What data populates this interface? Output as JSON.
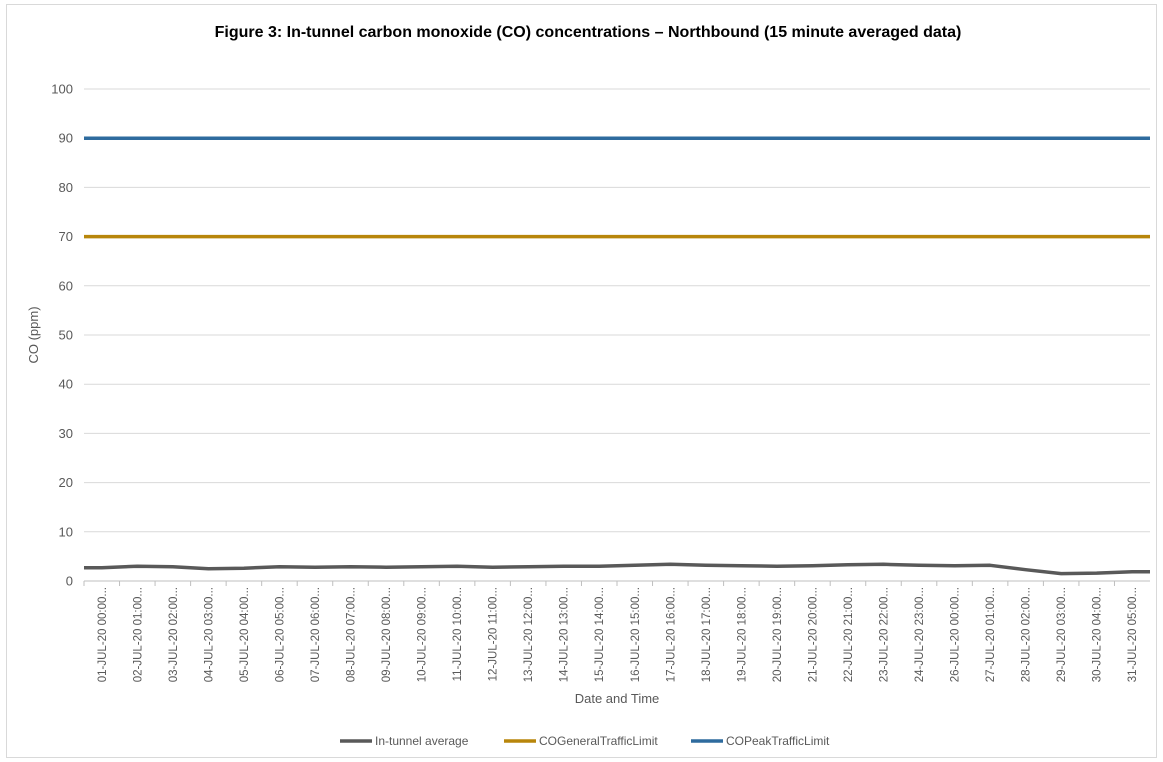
{
  "chart_data": {
    "type": "line",
    "title": "Figure 3: In-tunnel carbon monoxide (CO) concentrations – Northbound (15 minute averaged data)",
    "xlabel": "Date and Time",
    "ylabel": "CO (ppm)",
    "ylim": [
      0,
      100
    ],
    "yticks": [
      0,
      10,
      20,
      30,
      40,
      50,
      60,
      70,
      80,
      90,
      100
    ],
    "grid": true,
    "legend_position": "bottom",
    "categories": [
      "01-JUL-20 00:00...",
      "02-JUL-20 01:00...",
      "03-JUL-20 02:00...",
      "04-JUL-20 03:00...",
      "05-JUL-20 04:00...",
      "06-JUL-20 05:00...",
      "07-JUL-20 06:00...",
      "08-JUL-20 07:00...",
      "09-JUL-20 08:00...",
      "10-JUL-20 09:00...",
      "11-JUL-20 10:00...",
      "12-JUL-20 11:00...",
      "13-JUL-20 12:00...",
      "14-JUL-20 13:00...",
      "15-JUL-20 14:00...",
      "16-JUL-20 15:00...",
      "17-JUL-20 16:00...",
      "18-JUL-20 17:00...",
      "19-JUL-20 18:00...",
      "20-JUL-20 19:00...",
      "21-JUL-20 20:00...",
      "22-JUL-20 21:00...",
      "23-JUL-20 22:00...",
      "24-JUL-20 23:00...",
      "26-JUL-20 00:00...",
      "27-JUL-20 01:00...",
      "28-JUL-20 02:00...",
      "29-JUL-20 03:00...",
      "30-JUL-20 04:00...",
      "31-JUL-20 05:00..."
    ],
    "series": [
      {
        "name": "In-tunnel average",
        "color": "#595959",
        "values": [
          2.7,
          3.0,
          2.9,
          2.5,
          2.6,
          2.9,
          2.8,
          2.9,
          2.8,
          2.9,
          3.0,
          2.8,
          2.9,
          3.0,
          3.0,
          3.2,
          3.4,
          3.2,
          3.1,
          3.0,
          3.1,
          3.3,
          3.4,
          3.2,
          3.1,
          3.2,
          2.3,
          1.5,
          1.6,
          1.9
        ]
      },
      {
        "name": "COGeneralTrafficLimit",
        "color": "#b8860b",
        "values": [
          70,
          70,
          70,
          70,
          70,
          70,
          70,
          70,
          70,
          70,
          70,
          70,
          70,
          70,
          70,
          70,
          70,
          70,
          70,
          70,
          70,
          70,
          70,
          70,
          70,
          70,
          70,
          70,
          70,
          70
        ]
      },
      {
        "name": "COPeakTrafficLimit",
        "color": "#2e6b9e",
        "values": [
          90,
          90,
          90,
          90,
          90,
          90,
          90,
          90,
          90,
          90,
          90,
          90,
          90,
          90,
          90,
          90,
          90,
          90,
          90,
          90,
          90,
          90,
          90,
          90,
          90,
          90,
          90,
          90,
          90,
          90
        ]
      }
    ]
  }
}
